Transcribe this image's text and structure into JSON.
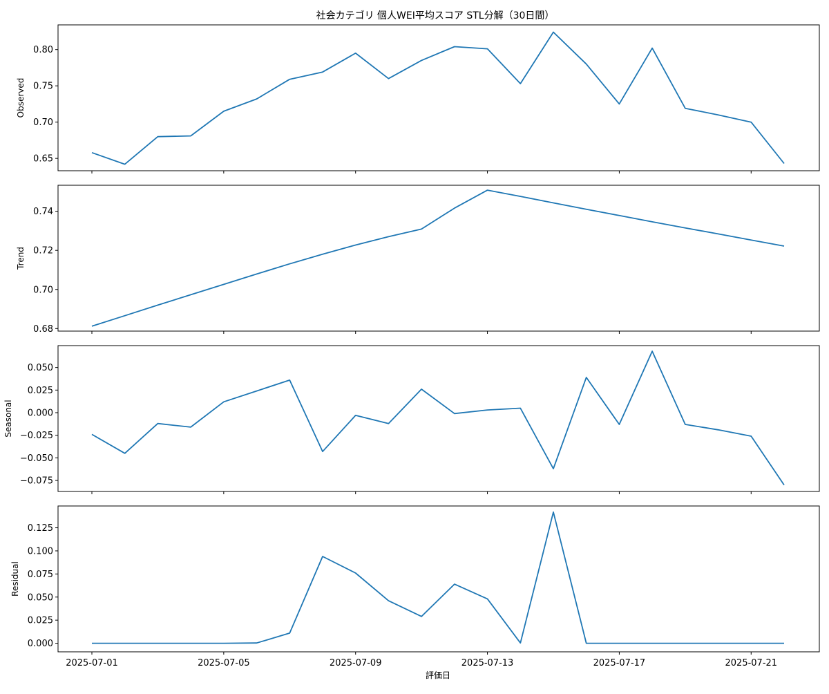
{
  "chart_data": {
    "type": "line",
    "title": "社会カテゴリ 個人WEI平均スコア STL分解（30日間）",
    "xlabel": "評価日",
    "line_color": "#1f77b4",
    "x": [
      "2025-07-01",
      "2025-07-02",
      "2025-07-03",
      "2025-07-04",
      "2025-07-05",
      "2025-07-06",
      "2025-07-07",
      "2025-07-08",
      "2025-07-09",
      "2025-07-10",
      "2025-07-11",
      "2025-07-12",
      "2025-07-13",
      "2025-07-14",
      "2025-07-15",
      "2025-07-16",
      "2025-07-17",
      "2025-07-18",
      "2025-07-19",
      "2025-07-20",
      "2025-07-21",
      "2025-07-22"
    ],
    "x_ticks": [
      "2025-07-01",
      "2025-07-05",
      "2025-07-09",
      "2025-07-13",
      "2025-07-17",
      "2025-07-21"
    ],
    "panels": [
      {
        "name": "observed",
        "ylabel": "Observed",
        "ylim": [
          0.633,
          0.834
        ],
        "yticks": [
          "0.65",
          "0.70",
          "0.75",
          "0.80"
        ],
        "values": [
          0.658,
          0.642,
          0.68,
          0.681,
          0.715,
          0.732,
          0.759,
          0.769,
          0.795,
          0.76,
          0.785,
          0.804,
          0.801,
          0.753,
          0.824,
          0.78,
          0.725,
          0.802,
          0.719,
          0.71,
          0.7,
          0.643
        ]
      },
      {
        "name": "trend",
        "ylabel": "Trend",
        "ylim": [
          0.6787,
          0.7533
        ],
        "yticks": [
          "0.68",
          "0.70",
          "0.72",
          "0.74"
        ],
        "values": [
          0.6812,
          0.6866,
          0.692,
          0.6973,
          0.7026,
          0.7079,
          0.7131,
          0.718,
          0.7227,
          0.727,
          0.7309,
          0.7416,
          0.7508,
          0.7476,
          0.7443,
          0.741,
          0.7378,
          0.7346,
          0.7315,
          0.7284,
          0.7253,
          0.7222
        ]
      },
      {
        "name": "seasonal",
        "ylabel": "Seasonal",
        "ylim": [
          -0.0872,
          0.0742
        ],
        "yticks": [
          "−0.075",
          "−0.050",
          "−0.025",
          "0.000",
          "0.025",
          "0.050"
        ],
        "values": [
          -0.024,
          -0.045,
          -0.012,
          -0.016,
          0.012,
          0.024,
          0.036,
          -0.043,
          -0.003,
          -0.012,
          0.026,
          -0.001,
          0.003,
          0.005,
          -0.062,
          0.039,
          -0.013,
          0.068,
          -0.013,
          -0.019,
          -0.026,
          -0.08
        ]
      },
      {
        "name": "residual",
        "ylabel": "Residual",
        "ylim": [
          -0.0093,
          0.1486
        ],
        "yticks": [
          "0.000",
          "0.025",
          "0.050",
          "0.075",
          "0.100",
          "0.125"
        ],
        "values": [
          0.0,
          0.0,
          0.0,
          0.0,
          0.0,
          0.0003,
          0.011,
          0.094,
          0.076,
          0.046,
          0.029,
          0.064,
          0.048,
          0.0003,
          0.142,
          0.0,
          0.0,
          0.0,
          0.0,
          0.0,
          0.0,
          0.0
        ]
      }
    ]
  }
}
